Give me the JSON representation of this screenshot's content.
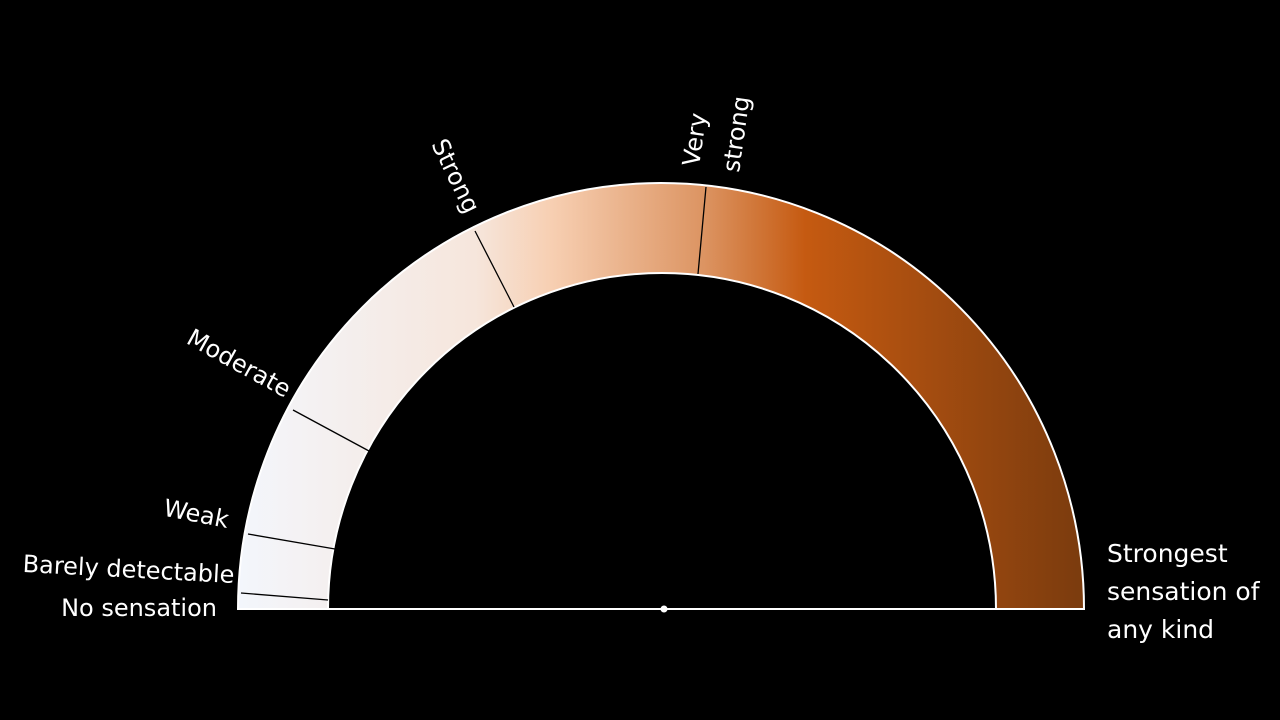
{
  "labels": {
    "no_sensation": "No sensation",
    "barely_detectable": "Barely detectable",
    "weak": "Weak",
    "moderate": "Moderate",
    "strong": "Strong",
    "very_strong_line1": "Very",
    "very_strong_line2": "strong",
    "strongest_line1": "Strongest",
    "strongest_line2": "sensation of",
    "strongest_line3": "any kind"
  },
  "colors": {
    "background": "#000000",
    "start": "#f3f6fc",
    "mid": "#f7cfb2",
    "accent": "#c55a11",
    "end": "#7a3b0e"
  }
}
